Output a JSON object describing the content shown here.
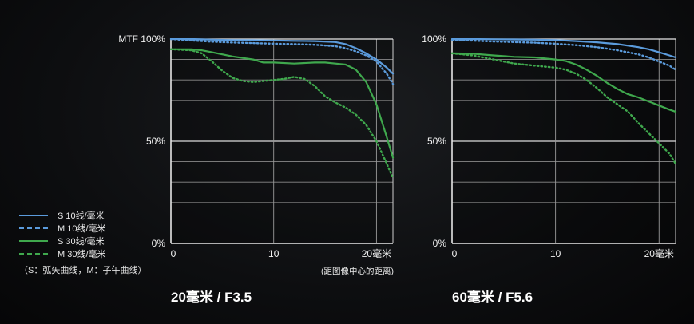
{
  "chart_data": [
    {
      "type": "line",
      "title": "20毫米 / F3.5",
      "ylabel": "MTF",
      "xlabel": "(距图像中心的距离)",
      "xlim": [
        0,
        21.6
      ],
      "ylim": [
        0,
        100
      ],
      "x_ticks": [
        "0",
        "10",
        "20毫米"
      ],
      "y_ticks": [
        "MTF 100%",
        "50%",
        "0%"
      ],
      "grid": true,
      "series": [
        {
          "name": "S 10线/毫米",
          "style": "solid",
          "color": "#5b9bdc",
          "x": [
            0,
            2,
            4,
            6,
            8,
            10,
            12,
            14,
            16,
            17,
            18,
            19,
            20,
            21,
            21.6
          ],
          "y": [
            100,
            100,
            99.7,
            99.5,
            99.4,
            99.3,
            99.1,
            99,
            98.5,
            97.5,
            95.5,
            93,
            90,
            86,
            83
          ]
        },
        {
          "name": "M 10线/毫米",
          "style": "dotted",
          "color": "#5b9bdc",
          "x": [
            0,
            2,
            4,
            6,
            8,
            10,
            12,
            14,
            16,
            17,
            18,
            19,
            20,
            21,
            21.6
          ],
          "y": [
            100,
            99.3,
            98.7,
            98.3,
            98,
            97.7,
            97.5,
            97.2,
            96.5,
            95.5,
            94,
            92,
            89,
            83,
            78
          ]
        },
        {
          "name": "S 30线/毫米",
          "style": "solid",
          "color": "#3fa84d",
          "x": [
            0,
            2,
            3,
            4,
            6,
            8,
            9,
            10,
            12,
            14,
            15,
            16,
            17,
            18,
            19,
            20,
            21,
            21.6
          ],
          "y": [
            95,
            95,
            94.5,
            93.5,
            91.5,
            90,
            88.5,
            88.5,
            88,
            88.5,
            88.5,
            88,
            87.5,
            85,
            79,
            68,
            52,
            42
          ]
        },
        {
          "name": "M 30线/毫米",
          "style": "dotted",
          "color": "#3fa84d",
          "x": [
            0,
            2,
            3,
            4,
            5,
            6,
            7,
            8,
            9,
            10,
            11,
            12,
            13,
            14,
            15,
            16,
            17,
            18,
            19,
            20,
            21,
            21.6
          ],
          "y": [
            95,
            94.5,
            93,
            89,
            84.5,
            81,
            79.5,
            79,
            79.5,
            80,
            80.5,
            81.5,
            80.5,
            77,
            72,
            69,
            66.5,
            63,
            58,
            50,
            39,
            32
          ]
        }
      ]
    },
    {
      "type": "line",
      "title": "60毫米 / F5.6",
      "ylabel": "",
      "xlabel": "",
      "xlim": [
        0,
        21.6
      ],
      "ylim": [
        0,
        100
      ],
      "x_ticks": [
        "0",
        "10",
        "20毫米"
      ],
      "y_ticks": [
        "100%",
        "50%",
        "0%"
      ],
      "grid": true,
      "series": [
        {
          "name": "S 10线/毫米",
          "style": "solid",
          "color": "#5b9bdc",
          "x": [
            0,
            2,
            4,
            6,
            8,
            10,
            12,
            14,
            16,
            18,
            19,
            20,
            21,
            21.6
          ],
          "y": [
            100,
            100,
            99.9,
            99.8,
            99.7,
            99.5,
            99,
            98.4,
            97.5,
            96,
            95,
            93.5,
            92,
            91
          ]
        },
        {
          "name": "M 10线/毫米",
          "style": "dotted",
          "color": "#5b9bdc",
          "x": [
            0,
            2,
            4,
            6,
            8,
            10,
            12,
            14,
            16,
            18,
            19,
            20,
            21,
            21.6
          ],
          "y": [
            99.5,
            99.2,
            98.8,
            98.5,
            98.2,
            97.7,
            97,
            96,
            94.5,
            92.5,
            91,
            89,
            87,
            85
          ]
        },
        {
          "name": "S 30线/毫米",
          "style": "solid",
          "color": "#3fa84d",
          "x": [
            0,
            2,
            4,
            6,
            8,
            10,
            11,
            12,
            13,
            14,
            15,
            16,
            17,
            18,
            19,
            20,
            21,
            21.6
          ],
          "y": [
            93,
            92.8,
            92,
            91.3,
            91,
            90,
            89.2,
            87.5,
            85,
            82,
            78.5,
            75.5,
            73,
            71.5,
            69.5,
            67.5,
            65.5,
            64.5
          ]
        },
        {
          "name": "M 30线/毫米",
          "style": "dotted",
          "color": "#3fa84d",
          "x": [
            0,
            2,
            4,
            6,
            8,
            10,
            11,
            12,
            13,
            14,
            15,
            16,
            17,
            18,
            19,
            20,
            21,
            21.6
          ],
          "y": [
            93,
            92,
            90,
            88,
            87,
            86,
            85,
            83,
            80,
            76,
            71.5,
            68,
            64.5,
            59,
            54,
            49,
            44,
            39
          ]
        }
      ]
    }
  ],
  "legend": {
    "items": [
      {
        "label": "S 10线/毫米",
        "color": "#5b9bdc",
        "style": "solid"
      },
      {
        "label": "M 10线/毫米",
        "color": "#5b9bdc",
        "style": "dashed"
      },
      {
        "label": "S 30线/毫米",
        "color": "#3fa84d",
        "style": "solid"
      },
      {
        "label": "M 30线/毫米",
        "color": "#3fa84d",
        "style": "dashed"
      }
    ],
    "note": "（S：弧矢曲线，M：子午曲线）"
  }
}
